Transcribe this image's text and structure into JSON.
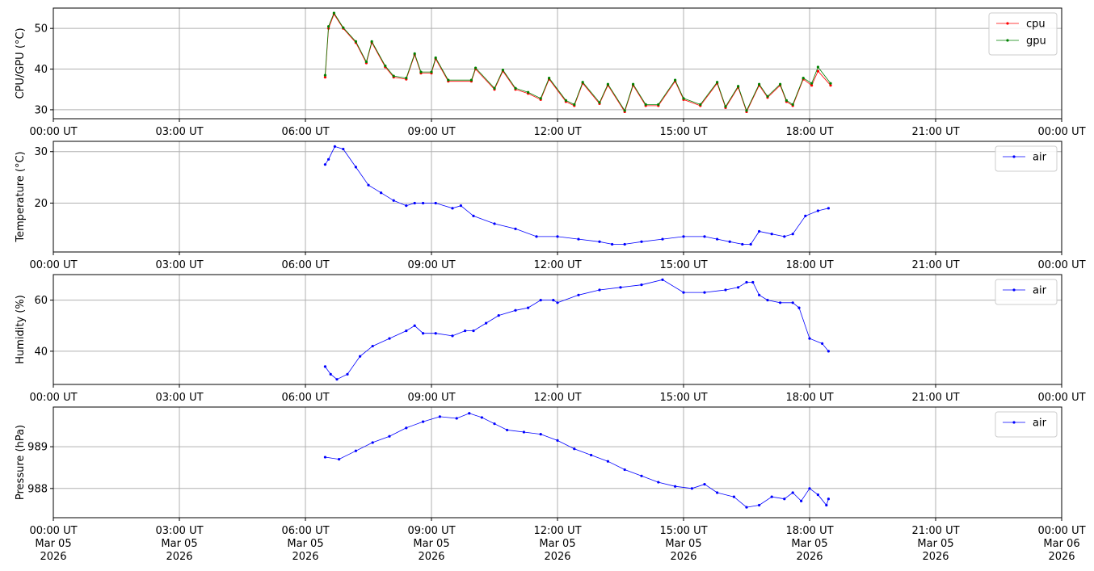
{
  "chart_data": [
    {
      "type": "line",
      "ylabel": "CPU/GPU (°C)",
      "ylim": [
        27.8,
        55
      ],
      "yticks": [
        30,
        40,
        50
      ],
      "ytick_labels": [
        "30",
        "40",
        "50"
      ],
      "x_range": [
        0,
        24
      ],
      "xticks": [
        0,
        3,
        6,
        9,
        12,
        15,
        18,
        21,
        24
      ],
      "xtick_labels": [
        "00:00 UT",
        "03:00 UT",
        "06:00 UT",
        "09:00 UT",
        "12:00 UT",
        "15:00 UT",
        "18:00 UT",
        "21:00 UT",
        "00:00 UT"
      ],
      "grid": true,
      "legend_position": "top-right",
      "series": [
        {
          "name": "cpu",
          "color": "#ff0000",
          "x": [
            6.47,
            6.55,
            6.68,
            6.9,
            7.2,
            7.45,
            7.58,
            7.9,
            8.1,
            8.4,
            8.6,
            8.75,
            9.0,
            9.1,
            9.4,
            9.95,
            10.05,
            10.5,
            10.7,
            11.0,
            11.3,
            11.6,
            11.8,
            12.2,
            12.4,
            12.6,
            13.0,
            13.2,
            13.6,
            13.8,
            14.1,
            14.4,
            14.8,
            15.0,
            15.4,
            15.8,
            16.0,
            16.3,
            16.5,
            16.8,
            17.0,
            17.3,
            17.45,
            17.6,
            17.85,
            18.05,
            18.2,
            18.5
          ],
          "y": [
            38,
            50,
            53.5,
            50,
            46.5,
            41.5,
            46.5,
            40.5,
            38,
            37.5,
            43.5,
            39,
            39,
            42.5,
            37,
            37,
            40,
            35,
            39.5,
            35,
            34,
            32.5,
            37.5,
            32,
            31,
            36.5,
            31.5,
            36,
            29.5,
            36,
            31,
            31,
            37,
            32.5,
            31,
            36.5,
            30.5,
            35.5,
            29.5,
            36,
            33,
            36,
            32,
            31,
            37.5,
            36,
            39.5,
            36
          ]
        },
        {
          "name": "gpu",
          "color": "#008000",
          "x": [
            6.47,
            6.55,
            6.68,
            6.9,
            7.2,
            7.45,
            7.58,
            7.9,
            8.1,
            8.4,
            8.6,
            8.75,
            9.0,
            9.1,
            9.4,
            9.95,
            10.05,
            10.5,
            10.7,
            11.0,
            11.3,
            11.6,
            11.8,
            12.2,
            12.4,
            12.6,
            13.0,
            13.2,
            13.6,
            13.8,
            14.1,
            14.4,
            14.8,
            15.0,
            15.4,
            15.8,
            16.0,
            16.3,
            16.5,
            16.8,
            17.0,
            17.3,
            17.45,
            17.6,
            17.85,
            18.05,
            18.2,
            18.5
          ],
          "y": [
            38.5,
            50.5,
            53.8,
            50.2,
            46.8,
            41.8,
            46.8,
            40.8,
            38.3,
            37.8,
            43.8,
            39.3,
            39.3,
            42.8,
            37.3,
            37.3,
            40.3,
            35.3,
            39.8,
            35.3,
            34.3,
            32.8,
            37.8,
            32.3,
            31.3,
            36.8,
            31.8,
            36.3,
            29.8,
            36.3,
            31.3,
            31.3,
            37.3,
            32.8,
            31.3,
            36.8,
            30.8,
            35.8,
            29.8,
            36.3,
            33.3,
            36.3,
            32.3,
            31.3,
            37.8,
            36.5,
            40.5,
            36.5
          ]
        }
      ]
    },
    {
      "type": "line",
      "ylabel": "Temperature (°C)",
      "ylim": [
        10.5,
        32
      ],
      "yticks": [
        20,
        30
      ],
      "ytick_labels": [
        "20",
        "30"
      ],
      "x_range": [
        0,
        24
      ],
      "xticks": [
        0,
        3,
        6,
        9,
        12,
        15,
        18,
        21,
        24
      ],
      "xtick_labels": [
        "00:00 UT",
        "03:00 UT",
        "06:00 UT",
        "09:00 UT",
        "12:00 UT",
        "15:00 UT",
        "18:00 UT",
        "21:00 UT",
        "00:00 UT"
      ],
      "grid": true,
      "legend_position": "top-right",
      "series": [
        {
          "name": "air",
          "color": "#0000ff",
          "x": [
            6.47,
            6.55,
            6.7,
            6.9,
            7.2,
            7.5,
            7.8,
            8.1,
            8.4,
            8.6,
            8.8,
            9.1,
            9.5,
            9.7,
            10.0,
            10.5,
            11.0,
            11.5,
            12.0,
            12.5,
            13.0,
            13.3,
            13.6,
            14.0,
            14.5,
            15.0,
            15.5,
            15.8,
            16.1,
            16.4,
            16.6,
            16.8,
            17.1,
            17.4,
            17.6,
            17.9,
            18.2,
            18.45
          ],
          "y": [
            27.5,
            28.5,
            31,
            30.5,
            27,
            23.5,
            22,
            20.5,
            19.5,
            20,
            20,
            20,
            19,
            19.5,
            17.5,
            16,
            15,
            13.5,
            13.5,
            13,
            12.5,
            12,
            12,
            12.5,
            13,
            13.5,
            13.5,
            13,
            12.5,
            12,
            12,
            14.5,
            14,
            13.5,
            14,
            17.5,
            18.5,
            19
          ]
        }
      ]
    },
    {
      "type": "line",
      "ylabel": "Humidity (%)",
      "ylim": [
        27,
        70
      ],
      "yticks": [
        40,
        60
      ],
      "ytick_labels": [
        "40",
        "60"
      ],
      "x_range": [
        0,
        24
      ],
      "xticks": [
        0,
        3,
        6,
        9,
        12,
        15,
        18,
        21,
        24
      ],
      "xtick_labels": [
        "00:00 UT",
        "03:00 UT",
        "06:00 UT",
        "09:00 UT",
        "12:00 UT",
        "15:00 UT",
        "18:00 UT",
        "21:00 UT",
        "00:00 UT"
      ],
      "grid": true,
      "legend_position": "top-right",
      "series": [
        {
          "name": "air",
          "color": "#0000ff",
          "x": [
            6.47,
            6.6,
            6.75,
            7.0,
            7.3,
            7.6,
            8.0,
            8.4,
            8.6,
            8.8,
            9.1,
            9.5,
            9.8,
            10.0,
            10.3,
            10.6,
            11.0,
            11.3,
            11.6,
            11.9,
            12.0,
            12.5,
            13.0,
            13.5,
            14.0,
            14.5,
            15.0,
            15.5,
            16.0,
            16.3,
            16.5,
            16.65,
            16.8,
            17.0,
            17.3,
            17.6,
            17.75,
            18.0,
            18.3,
            18.45
          ],
          "y": [
            34,
            31,
            29,
            31,
            38,
            42,
            45,
            48,
            50,
            47,
            47,
            46,
            48,
            48,
            51,
            54,
            56,
            57,
            60,
            60,
            59,
            62,
            64,
            65,
            66,
            68,
            63,
            63,
            64,
            65,
            67,
            67,
            62,
            60,
            59,
            59,
            57,
            45,
            43,
            40
          ]
        }
      ]
    },
    {
      "type": "line",
      "ylabel": "Pressure (hPa)",
      "ylim": [
        987.3,
        989.95
      ],
      "yticks": [
        988,
        989
      ],
      "ytick_labels": [
        "988",
        "989"
      ],
      "x_range": [
        0,
        24
      ],
      "xticks": [
        0,
        3,
        6,
        9,
        12,
        15,
        18,
        21,
        24
      ],
      "xtick_labels": [
        "00:00 UT\nMar 05\n2026",
        "03:00 UT\nMar 05\n2026",
        "06:00 UT\nMar 05\n2026",
        "09:00 UT\nMar 05\n2026",
        "12:00 UT\nMar 05\n2026",
        "15:00 UT\nMar 05\n2026",
        "18:00 UT\nMar 05\n2026",
        "21:00 UT\nMar 05\n2026",
        "00:00 UT\nMar 06\n2026"
      ],
      "grid": true,
      "legend_position": "top-right",
      "series": [
        {
          "name": "air",
          "color": "#0000ff",
          "x": [
            6.47,
            6.8,
            7.2,
            7.6,
            8.0,
            8.4,
            8.8,
            9.2,
            9.6,
            9.9,
            10.2,
            10.5,
            10.8,
            11.2,
            11.6,
            12.0,
            12.4,
            12.8,
            13.2,
            13.6,
            14.0,
            14.4,
            14.8,
            15.2,
            15.5,
            15.8,
            16.2,
            16.5,
            16.8,
            17.1,
            17.4,
            17.6,
            17.8,
            18.0,
            18.2,
            18.4,
            18.45
          ],
          "y": [
            988.75,
            988.7,
            988.9,
            989.1,
            989.25,
            989.45,
            989.6,
            989.72,
            989.68,
            989.8,
            989.7,
            989.55,
            989.4,
            989.35,
            989.3,
            989.15,
            988.95,
            988.8,
            988.65,
            988.45,
            988.3,
            988.15,
            988.05,
            988.0,
            988.1,
            987.9,
            987.8,
            987.55,
            987.6,
            987.8,
            987.75,
            987.9,
            987.7,
            988.0,
            987.85,
            987.6,
            987.75
          ]
        }
      ]
    }
  ]
}
